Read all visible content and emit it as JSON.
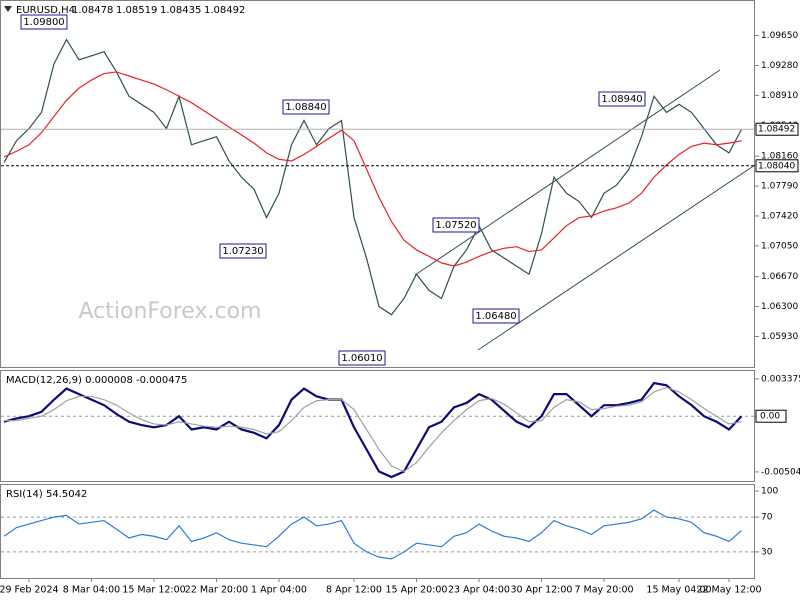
{
  "chart_data": {
    "type": "price-panels",
    "symbol": "EURUSD,H4",
    "ohlc": [
      1.08478,
      1.08519,
      1.08435,
      1.08492
    ],
    "watermark": "ActionForex.com",
    "categories": [
      null,
      null,
      "29 Feb 2024",
      null,
      null,
      null,
      null,
      "8 Mar 04:00",
      null,
      null,
      null,
      null,
      "15 Mar 12:00",
      null,
      null,
      null,
      null,
      "22 Mar 20:00",
      null,
      null,
      null,
      null,
      "1 Apr 04:00",
      null,
      null,
      null,
      null,
      null,
      "8 Apr 12:00",
      null,
      null,
      null,
      null,
      "15 Apr 20:00",
      null,
      null,
      null,
      null,
      "23 Apr 04:00",
      null,
      null,
      null,
      null,
      "30 Apr 12:00",
      null,
      null,
      null,
      null,
      "7 May 20:00",
      null,
      null,
      null,
      null,
      null,
      "15 May 04:00",
      null,
      null,
      null,
      "22 May 12:00",
      null
    ],
    "price": {
      "ylim": [
        1.0559,
        1.1004
      ],
      "yticks": [
        {
          "value": 1.0965,
          "label": "1.09650"
        },
        {
          "value": 1.0928,
          "label": "1.09280"
        },
        {
          "value": 1.0891,
          "label": "1.08910"
        },
        {
          "value": 1.0854,
          "label": "1.08540"
        },
        {
          "value": 1.0816,
          "label": "1.08160"
        },
        {
          "value": 1.0779,
          "label": "1.07790"
        },
        {
          "value": 1.0742,
          "label": "1.07420"
        },
        {
          "value": 1.0705,
          "label": "1.07050"
        },
        {
          "value": 1.0667,
          "label": "1.06670"
        },
        {
          "value": 1.063,
          "label": "1.06300"
        },
        {
          "value": 1.0593,
          "label": "1.05930"
        }
      ],
      "series": [
        {
          "name": "EURUSD",
          "color": "#2f4f4f",
          "values": [
            1.0808,
            1.0835,
            1.085,
            1.087,
            1.093,
            1.096,
            1.0935,
            1.094,
            1.0945,
            1.092,
            1.089,
            1.088,
            1.087,
            1.085,
            1.089,
            1.083,
            1.0835,
            1.084,
            1.081,
            1.079,
            1.0775,
            1.074,
            1.077,
            1.083,
            1.086,
            1.083,
            1.085,
            1.086,
            1.074,
            1.069,
            1.063,
            1.062,
            1.064,
            1.067,
            1.065,
            1.064,
            1.068,
            1.07,
            1.073,
            1.07,
            1.069,
            1.068,
            1.067,
            1.072,
            1.079,
            1.077,
            1.076,
            1.074,
            1.077,
            1.078,
            1.08,
            1.084,
            1.089,
            1.087,
            1.088,
            1.087,
            1.085,
            1.083,
            1.082,
            1.0849
          ]
        },
        {
          "name": "MA",
          "color": "#e8202a",
          "values": [
            1.0815,
            1.0822,
            1.083,
            1.0845,
            1.0865,
            1.0885,
            1.09,
            1.091,
            1.0918,
            1.092,
            1.0915,
            1.091,
            1.0905,
            1.0898,
            1.089,
            1.0882,
            1.0872,
            1.0862,
            1.0852,
            1.0842,
            1.0832,
            1.082,
            1.0812,
            1.081,
            1.0818,
            1.0828,
            1.0838,
            1.0848,
            1.0835,
            1.08,
            1.0765,
            1.0735,
            1.0712,
            1.07,
            1.0692,
            1.0684,
            1.068,
            1.0685,
            1.0692,
            1.0698,
            1.0702,
            1.0704,
            1.0698,
            1.07,
            1.0715,
            1.073,
            1.074,
            1.0742,
            1.0748,
            1.0752,
            1.0758,
            1.077,
            1.079,
            1.0805,
            1.0818,
            1.0828,
            1.0832,
            1.083,
            1.0832,
            1.0835
          ]
        }
      ],
      "levels": [
        {
          "value": 1.08492,
          "label": "1.08492",
          "color": "#b0b0b0"
        },
        {
          "value": 1.0804,
          "label": "1.08040",
          "color": "#000000"
        }
      ],
      "annotations": [
        "1.09800",
        "1.08840",
        "1.07230",
        "1.07520",
        "1.06010",
        "1.06480",
        "1.08940"
      ]
    },
    "macd": {
      "title": "MACD(12,26,9) 0.000008 -0.000475",
      "ylim": [
        -0.00586,
        0.004
      ],
      "yticks": [
        0.003375,
        {
          "value": 0,
          "label": "0.00"
        },
        -0.00504
      ],
      "series": [
        {
          "name": "MACD",
          "color": "#0a0a78",
          "values": [
            -0.0005,
            -0.0002,
            0.0,
            0.0004,
            0.0015,
            0.0025,
            0.002,
            0.0015,
            0.001,
            0.0002,
            -0.0005,
            -0.0008,
            -0.001,
            -0.0008,
            0.0,
            -0.0012,
            -0.001,
            -0.0012,
            -0.0005,
            -0.0012,
            -0.0015,
            -0.002,
            -0.0008,
            0.0015,
            0.0025,
            0.0018,
            0.0015,
            0.0015,
            -0.001,
            -0.003,
            -0.005,
            -0.0055,
            -0.005,
            -0.003,
            -0.001,
            -0.0005,
            0.0008,
            0.0012,
            0.002,
            0.0015,
            0.0005,
            -0.0005,
            -0.001,
            0.0,
            0.002,
            0.002,
            0.001,
            0.0,
            0.001,
            0.001,
            0.0012,
            0.0015,
            0.003,
            0.0028,
            0.0018,
            0.001,
            0.0,
            -0.0005,
            -0.0012,
            0.0
          ]
        },
        {
          "name": "Signal",
          "color": "#a0a0a0",
          "values": [
            -0.0004,
            -0.0004,
            -0.0002,
            0.0,
            0.0006,
            0.0014,
            0.0018,
            0.0018,
            0.0015,
            0.001,
            0.0003,
            -0.0003,
            -0.0007,
            -0.0008,
            -0.0005,
            -0.0007,
            -0.0009,
            -0.001,
            -0.0009,
            -0.001,
            -0.0012,
            -0.0016,
            -0.0014,
            -0.0004,
            0.0008,
            0.0014,
            0.0015,
            0.0015,
            0.0006,
            -0.0012,
            -0.003,
            -0.0045,
            -0.005,
            -0.0042,
            -0.0028,
            -0.0015,
            -0.0004,
            0.0006,
            0.0014,
            0.0016,
            0.0011,
            0.0003,
            -0.0005,
            -0.0004,
            0.0008,
            0.0015,
            0.0013,
            0.0006,
            0.0007,
            0.0009,
            0.001,
            0.0013,
            0.0022,
            0.0026,
            0.0022,
            0.0015,
            0.0007,
            0.0,
            -0.0007,
            -0.0005
          ]
        }
      ]
    },
    "rsi": {
      "title": "RSI(14) 54.5042",
      "ylim": [
        0,
        100
      ],
      "yticks": [
        100,
        70,
        30
      ],
      "series": [
        {
          "name": "RSI",
          "color": "#2b7bd6",
          "values": [
            48,
            58,
            62,
            66,
            70,
            72,
            62,
            64,
            66,
            56,
            46,
            50,
            48,
            44,
            60,
            42,
            46,
            52,
            44,
            40,
            38,
            36,
            48,
            62,
            70,
            60,
            62,
            66,
            40,
            30,
            24,
            22,
            30,
            40,
            38,
            36,
            48,
            52,
            62,
            54,
            48,
            46,
            42,
            52,
            66,
            60,
            56,
            50,
            60,
            62,
            64,
            68,
            78,
            70,
            68,
            64,
            52,
            48,
            42,
            54.5
          ]
        }
      ]
    }
  }
}
